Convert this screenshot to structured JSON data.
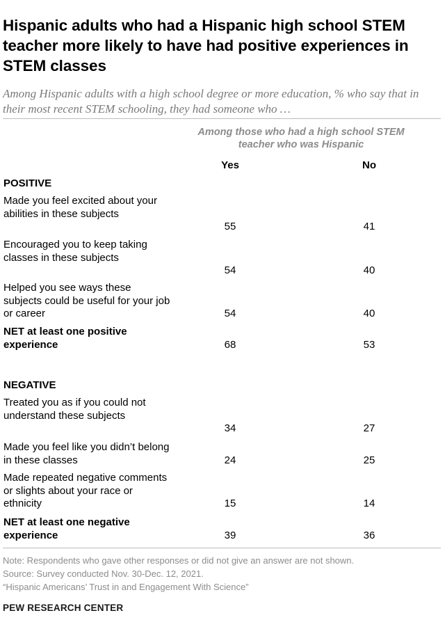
{
  "title": "Hispanic adults who had a Hispanic high school STEM teacher more likely to have had positive experiences in STEM classes",
  "subtitle": "Among Hispanic adults with a high school degree or more education, % who say that in their most recent STEM schooling, they had someone who …",
  "group_header": "Among those who had a high school STEM teacher who was Hispanic",
  "columns": {
    "yes": "Yes",
    "no": "No"
  },
  "positive": {
    "label": "POSITIVE",
    "rows": [
      {
        "label": "Made you feel excited about your abilities in these subjects",
        "yes": "55",
        "no": "41"
      },
      {
        "label": "Encouraged you to keep taking classes in these subjects",
        "yes": "54",
        "no": "40"
      },
      {
        "label": "Helped you see ways these subjects could be useful for your job or career",
        "yes": "54",
        "no": "40"
      }
    ],
    "net": {
      "label": "NET at least one positive experience",
      "yes": "68",
      "no": "53"
    }
  },
  "negative": {
    "label": "NEGATIVE",
    "rows": [
      {
        "label": "Treated you as if you could not understand these subjects",
        "yes": "34",
        "no": "27"
      },
      {
        "label": "Made you feel like you didn’t belong in these classes",
        "yes": "24",
        "no": "25"
      },
      {
        "label": "Made repeated negative comments or slights about your race or ethnicity",
        "yes": "15",
        "no": "14"
      }
    ],
    "net": {
      "label": "NET at least one negative experience",
      "yes": "39",
      "no": "36"
    }
  },
  "notes": {
    "note": "Note: Respondents who gave other responses or did not give an answer are not shown.",
    "source": "Source: Survey conducted Nov. 30-Dec. 12, 2021.",
    "report": "“Hispanic Americans’ Trust in and Engagement With Science”"
  },
  "org": "PEW RESEARCH CENTER"
}
